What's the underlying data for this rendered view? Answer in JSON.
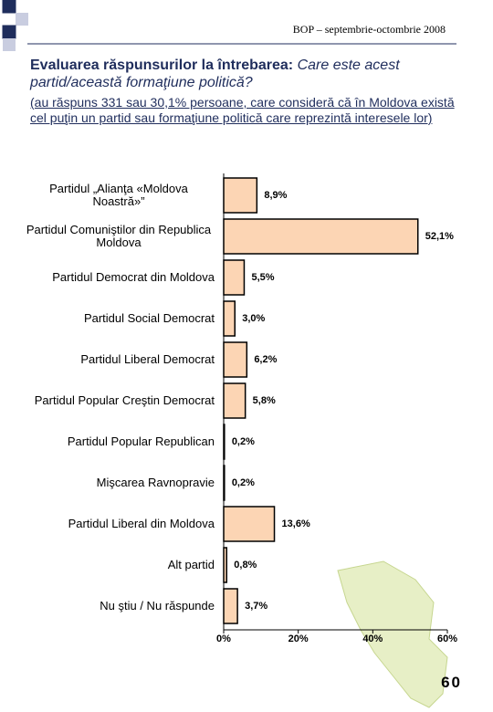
{
  "header": "BOP – septembrie-octombrie 2008",
  "title": "Evaluarea răspunsurilor la întrebarea:",
  "question": "Care este acest partid/această formaţiune politică?",
  "subtitle": "(au răspuns 331 sau 30,1% persoane, care consideră că în Moldova există cel puţin un partid sau formaţiune politică care reprezintă interesele lor)",
  "page_number": "60",
  "chart_data": {
    "type": "bar",
    "orientation": "horizontal",
    "color": "#fcd5b4",
    "categories": [
      "Partidul „Alianţa «Moldova Noastră»”",
      "Partidul Comuniştilor din Republica Moldova",
      "Partidul Democrat din Moldova",
      "Partidul Social Democrat",
      "Partidul Liberal Democrat",
      "Partidul Popular Creştin Democrat",
      "Partidul Popular Republican",
      "Mişcarea Ravnopravie",
      "Partidul Liberal din Moldova",
      "Alt partid",
      "Nu ştiu / Nu răspunde"
    ],
    "values": [
      8.9,
      52.1,
      5.5,
      3.0,
      6.2,
      5.8,
      0.2,
      0.2,
      13.6,
      0.8,
      3.7
    ],
    "value_labels": [
      "8,9%",
      "52,1%",
      "5,5%",
      "3,0%",
      "6,2%",
      "5,8%",
      "0,2%",
      "0,2%",
      "13,6%",
      "0,8%",
      "3,7%"
    ],
    "xlim": [
      0,
      60
    ],
    "xticks": [
      {
        "value": 0,
        "label": "0%"
      },
      {
        "value": 20,
        "label": "20%"
      },
      {
        "value": 40,
        "label": "40%"
      },
      {
        "value": 60,
        "label": "60%"
      }
    ]
  }
}
